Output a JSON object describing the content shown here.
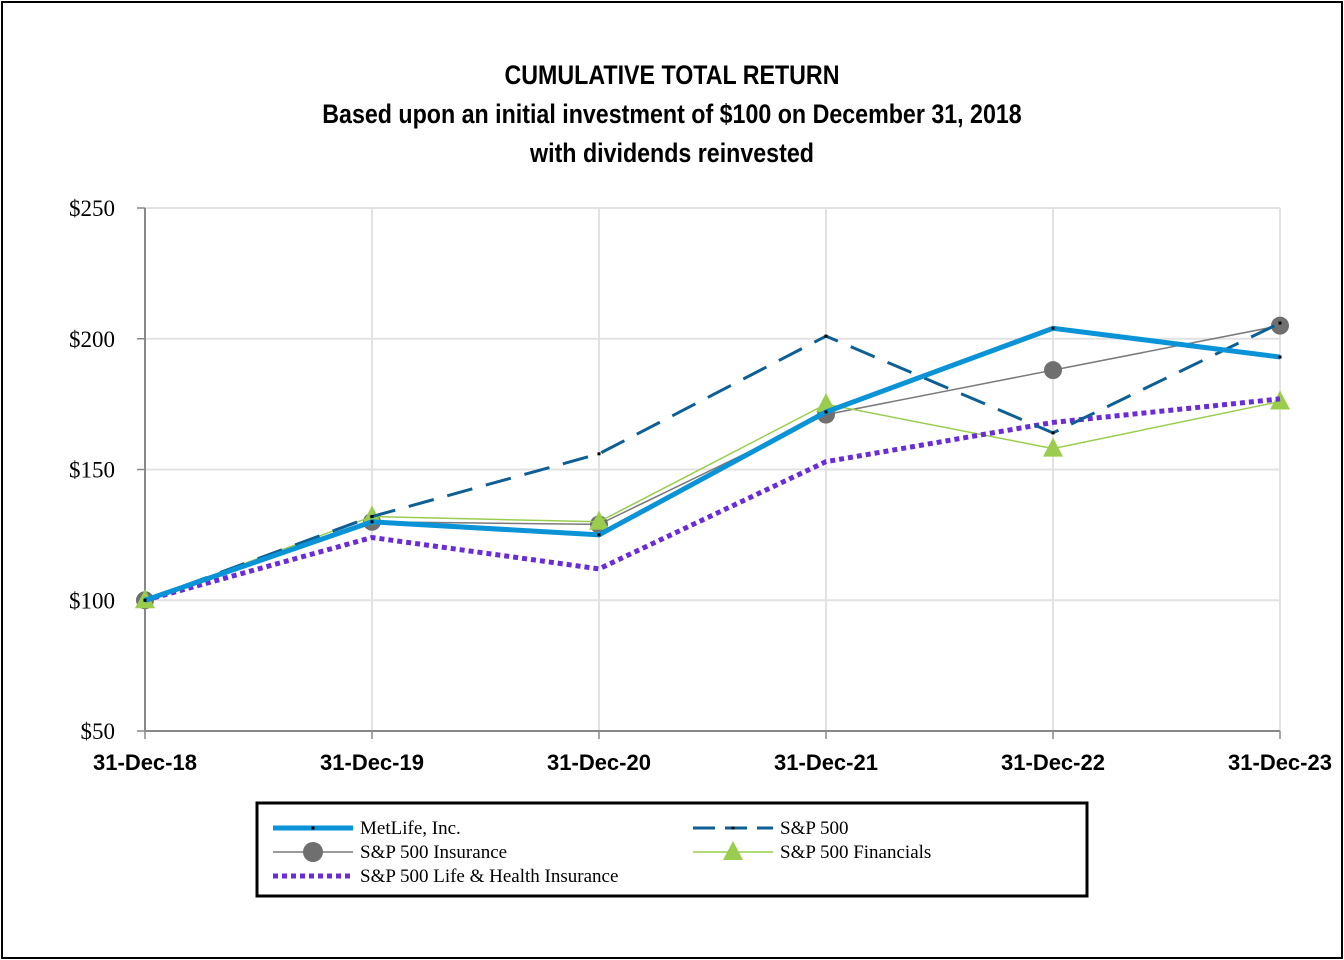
{
  "chart_data": {
    "type": "line",
    "title": "CUMULATIVE TOTAL RETURN",
    "subtitle": [
      "Based upon an initial investment of $100 on December 31, 2018",
      "with dividends reinvested"
    ],
    "xlabel": "",
    "ylabel": "",
    "categories": [
      "31-Dec-18",
      "31-Dec-19",
      "31-Dec-20",
      "31-Dec-21",
      "31-Dec-22",
      "31-Dec-23"
    ],
    "ylim": [
      50,
      250
    ],
    "yticks": [
      50,
      100,
      150,
      200,
      250
    ],
    "ytick_labels": [
      "$50",
      "$100",
      "$150",
      "$200",
      "$250"
    ],
    "grid": true,
    "legend_position": "bottom",
    "series": [
      {
        "name": "MetLife, Inc.",
        "color": "#0A93D6",
        "style": "thick",
        "values": [
          100,
          130,
          125,
          172,
          204,
          193
        ]
      },
      {
        "name": "S&P 500",
        "color": "#0E5F94",
        "style": "dashed",
        "values": [
          100,
          132,
          156,
          201,
          164,
          206
        ]
      },
      {
        "name": "S&P 500 Insurance",
        "color": "#7A7A7A",
        "style": "circle",
        "values": [
          100,
          130,
          129,
          171,
          188,
          205
        ]
      },
      {
        "name": "S&P 500 Financials",
        "color": "#9ACD4E",
        "style": "triangle",
        "values": [
          100,
          132,
          130,
          175,
          158,
          176
        ]
      },
      {
        "name": "S&P 500 Life & Health Insurance",
        "color": "#6A2BD9",
        "style": "dotted",
        "values": [
          100,
          124,
          112,
          153,
          168,
          177
        ]
      }
    ]
  }
}
